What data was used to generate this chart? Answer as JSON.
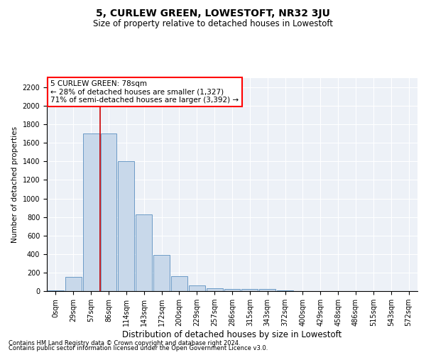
{
  "title": "5, CURLEW GREEN, LOWESTOFT, NR32 3JU",
  "subtitle": "Size of property relative to detached houses in Lowestoft",
  "xlabel": "Distribution of detached houses by size in Lowestoft",
  "ylabel": "Number of detached properties",
  "footnote1": "Contains HM Land Registry data © Crown copyright and database right 2024.",
  "footnote2": "Contains public sector information licensed under the Open Government Licence v3.0.",
  "property_label": "5 CURLEW GREEN: 78sqm",
  "annotation_line1": "← 28% of detached houses are smaller (1,327)",
  "annotation_line2": "71% of semi-detached houses are larger (3,392) →",
  "bar_color": "#c8d8ea",
  "bar_edge_color": "#5a8fc0",
  "vline_color": "#cc0000",
  "categories": [
    "0sqm",
    "29sqm",
    "57sqm",
    "86sqm",
    "114sqm",
    "143sqm",
    "172sqm",
    "200sqm",
    "229sqm",
    "257sqm",
    "286sqm",
    "315sqm",
    "343sqm",
    "372sqm",
    "400sqm",
    "429sqm",
    "458sqm",
    "486sqm",
    "515sqm",
    "543sqm",
    "572sqm"
  ],
  "values": [
    10,
    150,
    1700,
    1700,
    1400,
    830,
    390,
    160,
    65,
    30,
    20,
    20,
    20,
    5,
    0,
    0,
    0,
    0,
    0,
    0,
    0
  ],
  "ylim": [
    0,
    2300
  ],
  "yticks": [
    0,
    200,
    400,
    600,
    800,
    1000,
    1200,
    1400,
    1600,
    1800,
    2000,
    2200
  ],
  "vline_x": 2.5,
  "background_color": "#edf1f7",
  "grid_color": "#ffffff",
  "title_fontsize": 10,
  "subtitle_fontsize": 8.5,
  "ylabel_fontsize": 7.5,
  "xlabel_fontsize": 8.5,
  "tick_fontsize": 7,
  "footnote_fontsize": 6,
  "annot_fontsize": 7.5
}
